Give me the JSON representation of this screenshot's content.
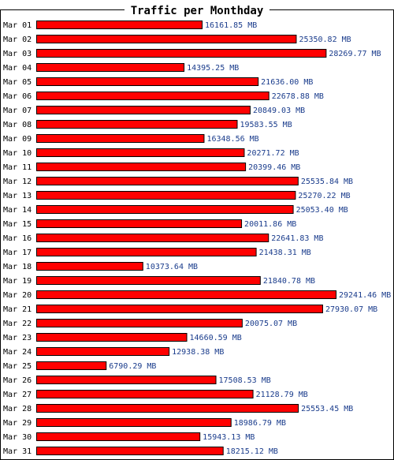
{
  "chart_data": {
    "type": "bar",
    "orientation": "horizontal",
    "title": "Traffic per Monthday",
    "unit": "MB",
    "categories": [
      "Mar 01",
      "Mar 02",
      "Mar 03",
      "Mar 04",
      "Mar 05",
      "Mar 06",
      "Mar 07",
      "Mar 08",
      "Mar 09",
      "Mar 10",
      "Mar 11",
      "Mar 12",
      "Mar 13",
      "Mar 14",
      "Mar 15",
      "Mar 16",
      "Mar 17",
      "Mar 18",
      "Mar 19",
      "Mar 20",
      "Mar 21",
      "Mar 22",
      "Mar 23",
      "Mar 24",
      "Mar 25",
      "Mar 26",
      "Mar 27",
      "Mar 28",
      "Mar 29",
      "Mar 30",
      "Mar 31"
    ],
    "values": [
      16161.85,
      25350.82,
      28269.77,
      14395.25,
      21636.0,
      22678.88,
      20849.03,
      19583.55,
      16348.56,
      20271.72,
      20399.46,
      25535.84,
      25270.22,
      25053.4,
      20011.86,
      22641.83,
      21438.31,
      10373.64,
      21840.78,
      29241.46,
      27930.07,
      20075.07,
      14660.59,
      12938.38,
      6790.29,
      17508.53,
      21128.79,
      25553.45,
      18986.79,
      15943.13,
      18215.12
    ],
    "value_labels": [
      "16161.85 MB",
      "25350.82 MB",
      "28269.77 MB",
      "14395.25 MB",
      "21636.00 MB",
      "22678.88 MB",
      "20849.03 MB",
      "19583.55 MB",
      "16348.56 MB",
      "20271.72 MB",
      "20399.46 MB",
      "25535.84 MB",
      "25270.22 MB",
      "25053.40 MB",
      "20011.86 MB",
      "22641.83 MB",
      "21438.31 MB",
      "10373.64 MB",
      "21840.78 MB",
      "29241.46 MB",
      "27930.07 MB",
      "20075.07 MB",
      "14660.59 MB",
      "12938.38 MB",
      "6790.29 MB",
      "17508.53 MB",
      "21128.79 MB",
      "25553.45 MB",
      "18986.79 MB",
      "15943.13 MB",
      "18215.12 MB"
    ],
    "xlim": [
      0,
      29241.46
    ],
    "grid": false,
    "legend": "none",
    "colors": {
      "bar": "#ff0000",
      "bar_border": "#000000",
      "value_label": "#1a3c8c",
      "frame": "#000000",
      "background": "#ffffff"
    }
  }
}
